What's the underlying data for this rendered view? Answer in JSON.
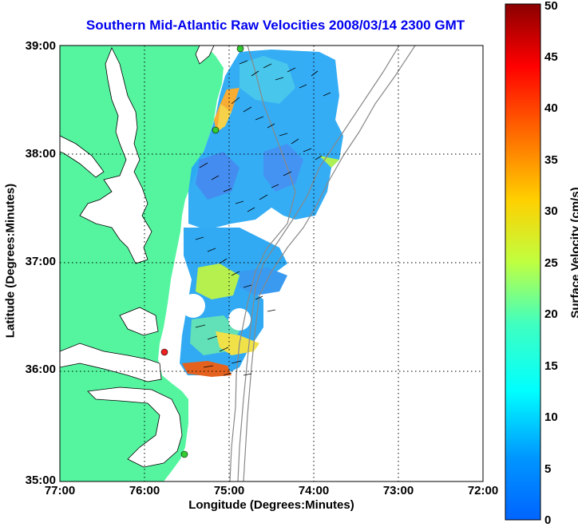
{
  "title": "Southern Mid-Atlantic Raw Velocities 2008/03/14 2300 GMT",
  "title_color": "#0000ee",
  "xlabel": "Longitude (Degrees:Minutes)",
  "ylabel": "Latitude (Degrees:Minutes)",
  "colorbar": {
    "label": "Surface Velocity (cm/s)",
    "min": 0,
    "max": 50,
    "ticks": [
      "0",
      "5",
      "10",
      "15",
      "20",
      "25",
      "30",
      "35",
      "40",
      "45",
      "50"
    ],
    "colormap": "jet"
  },
  "axes": {
    "x_ticks": [
      "77:00",
      "76:00",
      "75:00",
      "74:00",
      "73:00",
      "72:00"
    ],
    "y_ticks": [
      "39:00",
      "38:00",
      "37:00",
      "36:00",
      "35:00"
    ],
    "x_range_deg_west": [
      77,
      72
    ],
    "y_range_deg_north": [
      35,
      39
    ],
    "grid": "dotted"
  },
  "colors": {
    "land": "#55f5a0",
    "water": "#ffffff",
    "bathymetry_contour": "#888888"
  },
  "stations": [
    {
      "color": "#33cc33",
      "lon": -74.87,
      "lat": 39.02
    },
    {
      "color": "#33cc33",
      "lon": -75.14,
      "lat": 38.25
    },
    {
      "color": "#ee2222",
      "lon": -75.73,
      "lat": 36.18
    },
    {
      "color": "#33cc33",
      "lon": -75.47,
      "lat": 35.24
    }
  ]
}
